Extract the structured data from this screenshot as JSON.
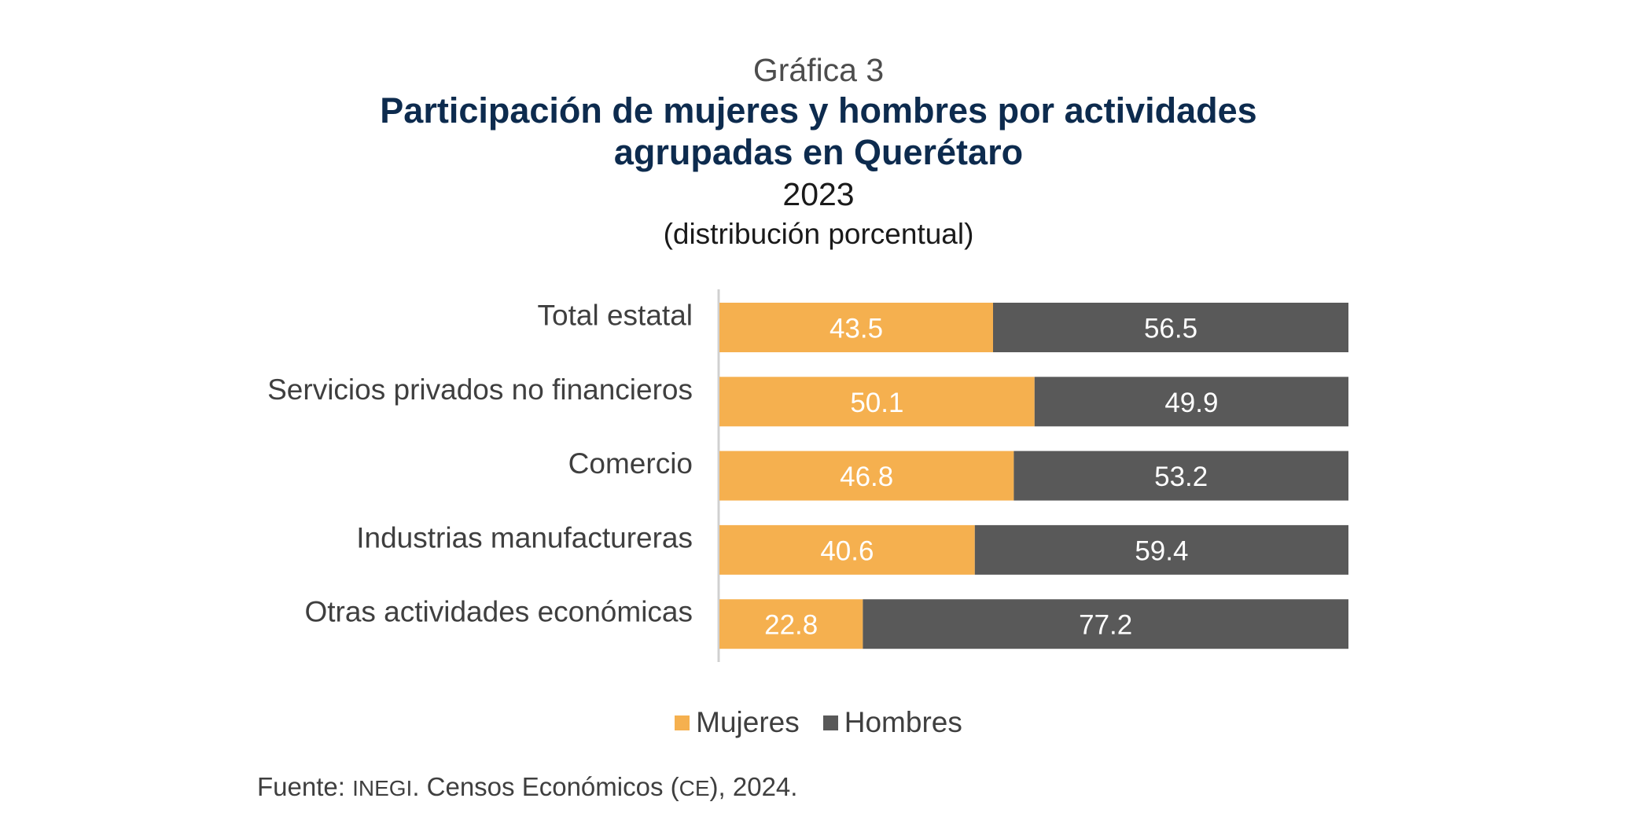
{
  "header": {
    "kicker": "Gráfica 3",
    "title_line1": "Participación de mujeres y hombres por actividades",
    "title_line2": "agrupadas en Querétaro",
    "year": "2023",
    "units": "(distribución porcentual)"
  },
  "chart_data": {
    "type": "bar",
    "orientation": "horizontal",
    "stacked": true,
    "categories": [
      "Total estatal",
      "Servicios privados no financieros",
      "Comercio",
      "Industrias manufactureras",
      "Otras actividades económicas"
    ],
    "series": [
      {
        "name": "Mujeres",
        "color": "#f5b04f",
        "values": [
          43.5,
          50.1,
          46.8,
          40.6,
          22.8
        ]
      },
      {
        "name": "Hombres",
        "color": "#595959",
        "values": [
          56.5,
          49.9,
          53.2,
          59.4,
          77.2
        ]
      }
    ],
    "xlim": [
      0,
      100
    ],
    "grid": false,
    "legend_position": "bottom",
    "data_labels": true
  },
  "source": {
    "prefix": "Fuente: ",
    "org": "INEGI",
    "mid": ". Censos Económicos (",
    "abbr": "CE",
    "suffix": "), 2024."
  }
}
